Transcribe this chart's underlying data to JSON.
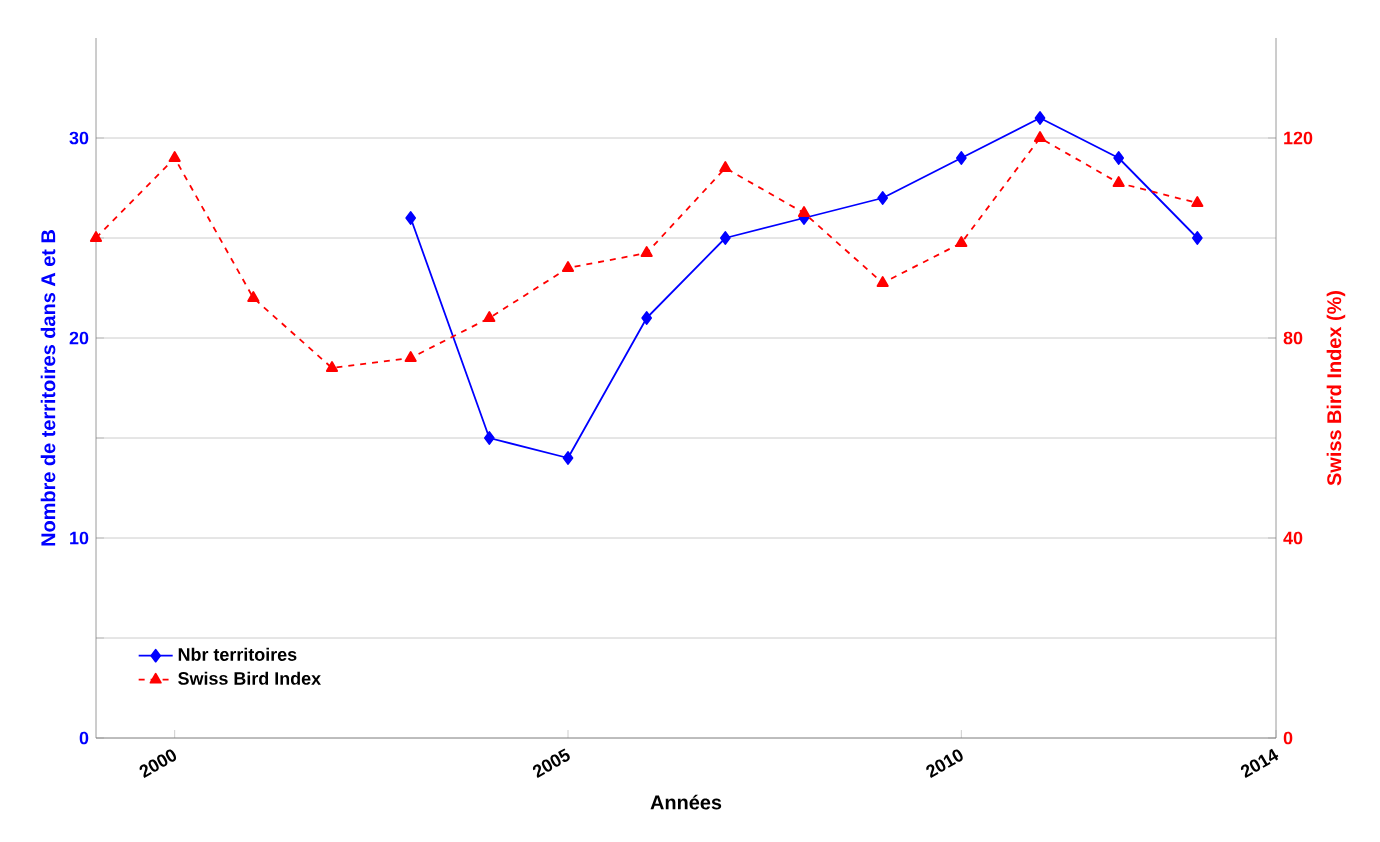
{
  "chart_data": {
    "type": "line",
    "xlabel": "Années",
    "ylabel": "Nombre de territoires dans A et B",
    "y2label": "Swiss Bird Index (%)",
    "xlim": [
      1999,
      2014
    ],
    "xticks": [
      2000,
      2005,
      2010,
      2014
    ],
    "ylim": [
      0,
      35
    ],
    "yticks": [
      0,
      {
        "value": 5,
        "label": null
      },
      10,
      {
        "value": 15,
        "label": null
      },
      20,
      {
        "value": 25,
        "label": null
      },
      30
    ],
    "y2lim": [
      0,
      140
    ],
    "y2ticks": [
      0,
      40,
      80,
      120
    ],
    "grid": "y",
    "legend": "bottom left",
    "series": [
      {
        "name": "Nbr territoires",
        "color": "#0000ff",
        "marker": "diamond",
        "line_style": "solid",
        "x": [
          2003,
          2004,
          2005,
          2006,
          2007,
          2008,
          2009,
          2010,
          2011,
          2012,
          2013
        ],
        "values": [
          26,
          15,
          14,
          21,
          25,
          26,
          27,
          29,
          31,
          29,
          25
        ]
      },
      {
        "name": "Swiss Bird Index",
        "color": "#ff0000",
        "marker": "triangle",
        "line_style": "dashed",
        "axis": "y2",
        "x": [
          1999,
          2000,
          2001,
          2002,
          2003,
          2004,
          2005,
          2006,
          2007,
          2008,
          2009,
          2010,
          2011,
          2012,
          2013
        ],
        "values": [
          100,
          116,
          88,
          74,
          76,
          84,
          94,
          97,
          114,
          105,
          91,
          99,
          120,
          111,
          107
        ]
      }
    ]
  }
}
